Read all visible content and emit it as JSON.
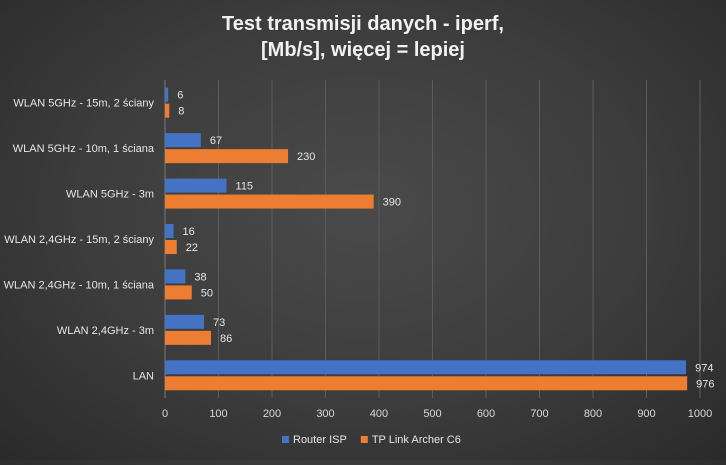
{
  "chart_data": {
    "type": "bar",
    "orientation": "horizontal",
    "title_line1": "Test transmisji danych - iperf,",
    "title_line2": "[Mb/s], więcej = lepiej",
    "categories": [
      "WLAN 5GHz - 15m, 2 ściany",
      "WLAN 5GHz - 10m, 1 ściana",
      "WLAN 5GHz - 3m",
      "WLAN 2,4GHz - 15m, 2 ściany",
      "WLAN 2,4GHz - 10m, 1 ściana",
      "WLAN 2,4GHz - 3m",
      "LAN"
    ],
    "series": [
      {
        "name": "Router ISP",
        "color": "#4472c4",
        "values": [
          6,
          67,
          115,
          16,
          38,
          73,
          974
        ]
      },
      {
        "name": "TP Link Archer C6",
        "color": "#ed7d31",
        "values": [
          8,
          230,
          390,
          22,
          50,
          86,
          976
        ]
      }
    ],
    "xlim": [
      0,
      1000
    ],
    "x_ticks": [
      0,
      100,
      200,
      300,
      400,
      500,
      600,
      700,
      800,
      900,
      1000
    ],
    "grid": true,
    "legend_position": "bottom"
  }
}
